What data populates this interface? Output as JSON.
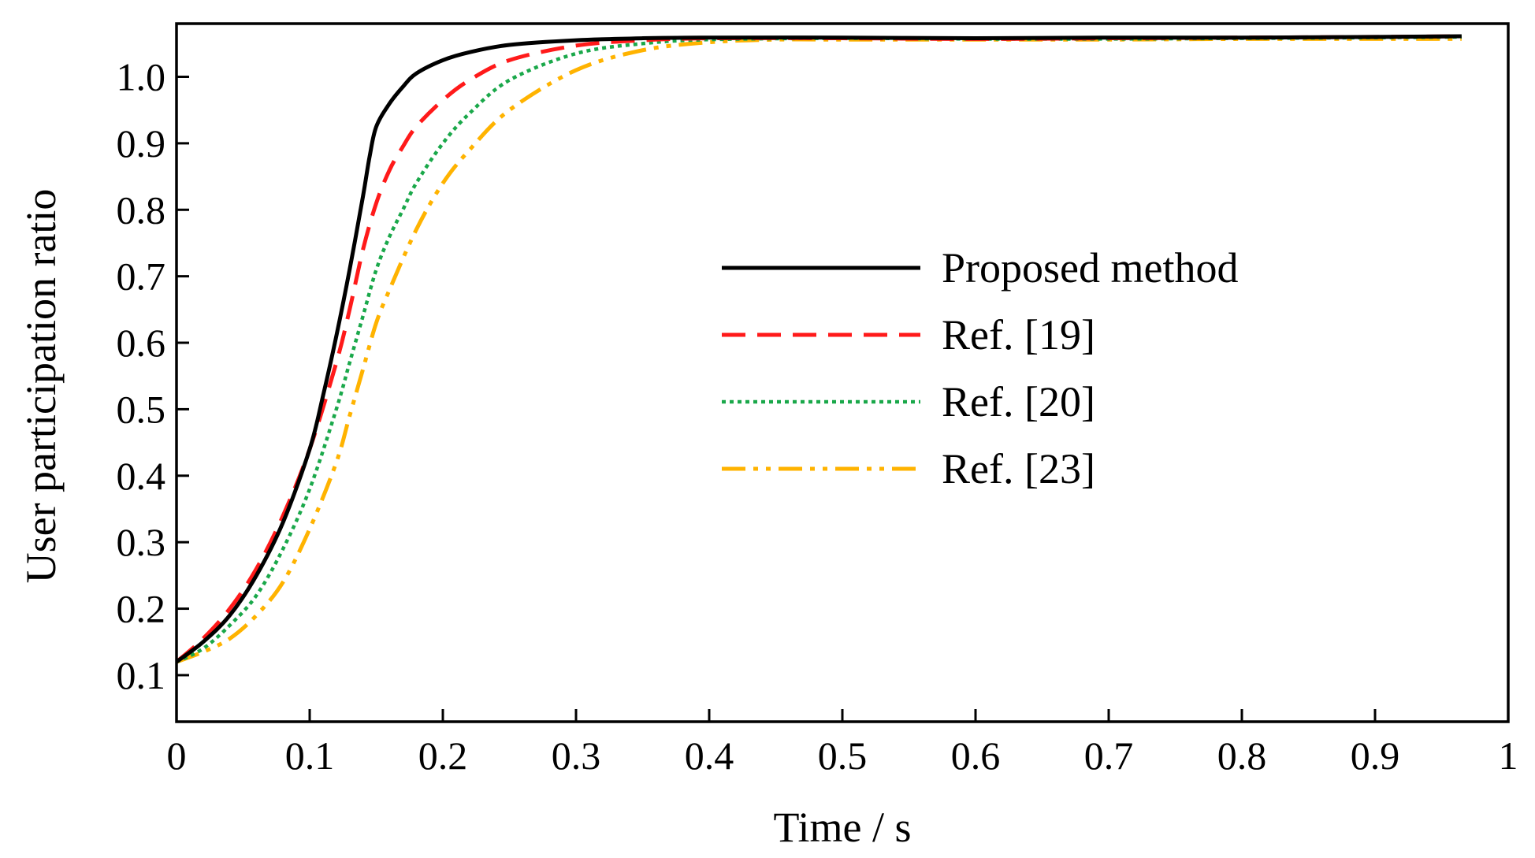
{
  "chart_data": {
    "type": "line",
    "title": "",
    "xlabel": "Time / s",
    "ylabel": "User participation ratio",
    "xlim": [
      0,
      1
    ],
    "ylim": [
      0.03,
      1.08
    ],
    "grid": false,
    "legend_position": "center-right",
    "x_ticks": [
      0,
      0.1,
      0.2,
      0.3,
      0.4,
      0.5,
      0.6,
      0.7,
      0.8,
      0.9,
      1
    ],
    "x_tick_labels": [
      "0",
      "0.1",
      "0.2",
      "0.3",
      "0.4",
      "0.5",
      "0.6",
      "0.7",
      "0.8",
      "0.9",
      "1"
    ],
    "y_ticks": [
      0.1,
      0.2,
      0.3,
      0.4,
      0.5,
      0.6,
      0.7,
      0.8,
      0.9,
      1.0
    ],
    "y_tick_labels": [
      "0.1",
      "0.2",
      "0.3",
      "0.4",
      "0.5",
      "0.6",
      "0.7",
      "0.8",
      "0.9",
      "1.0"
    ],
    "series": [
      {
        "name": "Proposed method",
        "color": "#000000",
        "style": "solid",
        "x": [
          0,
          0.02,
          0.04,
          0.06,
          0.08,
          0.1,
          0.11,
          0.12,
          0.13,
          0.14,
          0.145,
          0.15,
          0.16,
          0.17,
          0.18,
          0.2,
          0.22,
          0.25,
          0.3,
          0.35,
          0.4,
          0.5,
          0.6,
          0.7,
          0.8,
          0.9,
          0.965
        ],
        "y": [
          0.12,
          0.15,
          0.19,
          0.25,
          0.33,
          0.44,
          0.52,
          0.61,
          0.71,
          0.82,
          0.88,
          0.925,
          0.96,
          0.985,
          1.005,
          1.025,
          1.037,
          1.048,
          1.055,
          1.058,
          1.059,
          1.059,
          1.058,
          1.059,
          1.059,
          1.06,
          1.061
        ]
      },
      {
        "name": "Ref. [19]",
        "color": "#ff1a1a",
        "style": "dashed",
        "x": [
          0,
          0.02,
          0.04,
          0.06,
          0.08,
          0.1,
          0.12,
          0.13,
          0.14,
          0.15,
          0.16,
          0.17,
          0.18,
          0.2,
          0.22,
          0.25,
          0.3,
          0.35,
          0.4,
          0.5,
          0.6,
          0.7,
          0.8,
          0.9,
          0.965
        ],
        "y": [
          0.12,
          0.155,
          0.2,
          0.26,
          0.34,
          0.44,
          0.57,
          0.65,
          0.74,
          0.81,
          0.86,
          0.895,
          0.925,
          0.965,
          0.995,
          1.025,
          1.047,
          1.055,
          1.058,
          1.058,
          1.057,
          1.058,
          1.059,
          1.06,
          1.061
        ]
      },
      {
        "name": "Ref. [20]",
        "color": "#1aa84a",
        "style": "dotted",
        "x": [
          0,
          0.02,
          0.04,
          0.06,
          0.08,
          0.1,
          0.12,
          0.13,
          0.14,
          0.15,
          0.16,
          0.17,
          0.18,
          0.2,
          0.22,
          0.25,
          0.3,
          0.35,
          0.4,
          0.5,
          0.6,
          0.7,
          0.8,
          0.9,
          0.965
        ],
        "y": [
          0.12,
          0.14,
          0.175,
          0.22,
          0.29,
          0.38,
          0.5,
          0.57,
          0.64,
          0.71,
          0.76,
          0.8,
          0.84,
          0.9,
          0.945,
          0.995,
          1.035,
          1.05,
          1.056,
          1.058,
          1.057,
          1.057,
          1.058,
          1.059,
          1.06
        ]
      },
      {
        "name": "Ref. [23]",
        "color": "#ffb300",
        "style": "dash-dot-dot",
        "x": [
          0,
          0.02,
          0.04,
          0.06,
          0.08,
          0.1,
          0.12,
          0.13,
          0.14,
          0.15,
          0.16,
          0.18,
          0.2,
          0.22,
          0.25,
          0.3,
          0.35,
          0.4,
          0.45,
          0.5,
          0.6,
          0.7,
          0.8,
          0.9,
          0.965
        ],
        "y": [
          0.12,
          0.135,
          0.155,
          0.19,
          0.24,
          0.32,
          0.42,
          0.49,
          0.56,
          0.63,
          0.68,
          0.77,
          0.84,
          0.89,
          0.95,
          1.01,
          1.04,
          1.052,
          1.056,
          1.056,
          1.056,
          1.056,
          1.057,
          1.057,
          1.057
        ]
      }
    ]
  }
}
